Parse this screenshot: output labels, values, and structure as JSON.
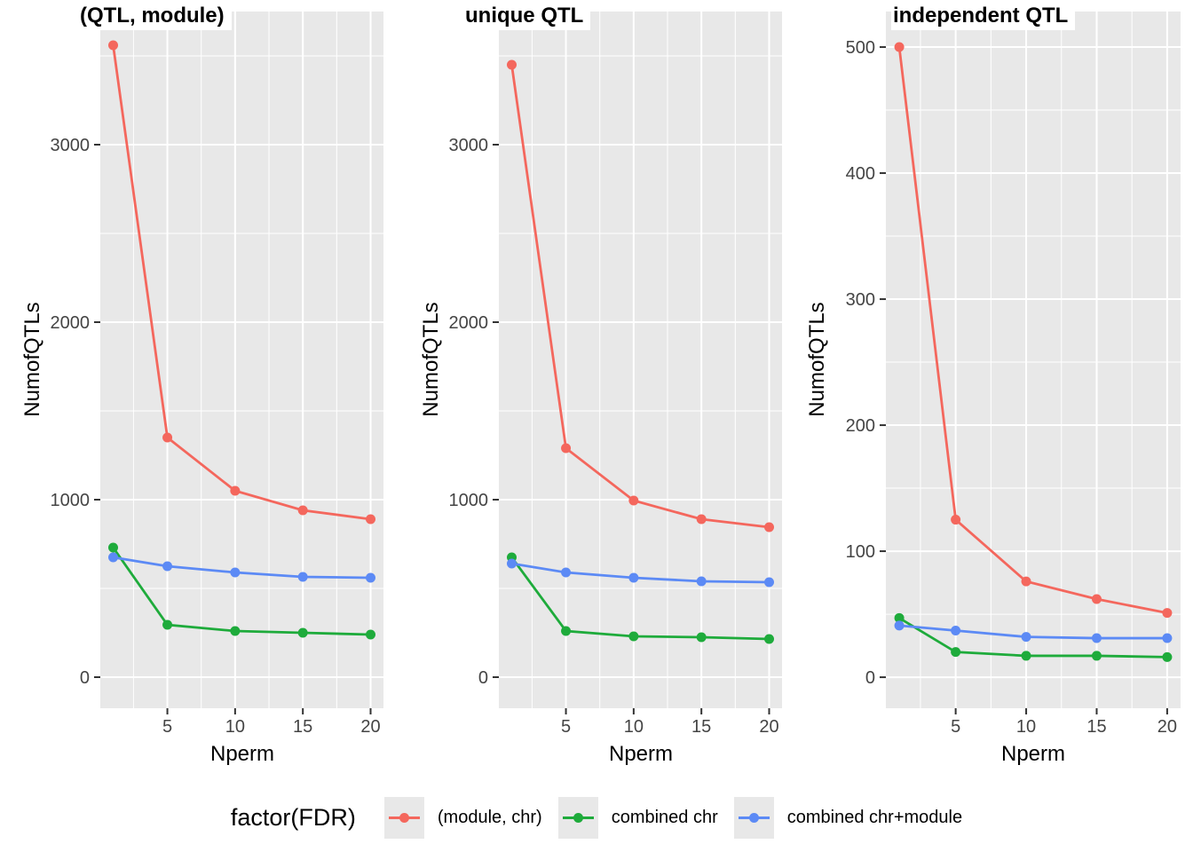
{
  "figure": {
    "background": "#FFFFFF",
    "panel_background": "#E8E8E8",
    "gridline_color": "#FFFFFF",
    "tick_mark_color": "#333333",
    "tick_label_color": "#444444"
  },
  "legend": {
    "title": "factor(FDR)",
    "position": "bottom",
    "key_background": "#E8E8E8",
    "items": [
      {
        "label": "(module, chr)",
        "color": "#F4675D"
      },
      {
        "label": "combined chr",
        "color": "#1EAB3B"
      },
      {
        "label": "combined chr+module",
        "color": "#5C8AF5"
      }
    ]
  },
  "chart_data": [
    {
      "type": "line",
      "title": "(QTL, module)",
      "xlabel": "Nperm",
      "ylabel": "NumofQTLs",
      "x": [
        1,
        5,
        10,
        15,
        20
      ],
      "x_ticks": [
        5,
        10,
        15,
        20
      ],
      "x_minor": [
        2.5,
        7.5,
        12.5,
        17.5
      ],
      "xlim": [
        0.05,
        20.95
      ],
      "y_ticks": [
        0,
        1000,
        2000,
        3000
      ],
      "y_minor": [
        500,
        1500,
        2500,
        3500
      ],
      "ylim": [
        -175,
        3750
      ],
      "grid": true,
      "series": [
        {
          "name": "(module, chr)",
          "color": "#F4675D",
          "values": [
            3560,
            1350,
            1050,
            940,
            890
          ]
        },
        {
          "name": "combined chr",
          "color": "#1EAB3B",
          "values": [
            730,
            295,
            260,
            250,
            240
          ]
        },
        {
          "name": "combined chr+module",
          "color": "#5C8AF5",
          "values": [
            675,
            625,
            590,
            565,
            560
          ]
        }
      ]
    },
    {
      "type": "line",
      "title": "unique QTL",
      "xlabel": "Nperm",
      "ylabel": "NumofQTLs",
      "x": [
        1,
        5,
        10,
        15,
        20
      ],
      "x_ticks": [
        5,
        10,
        15,
        20
      ],
      "x_minor": [
        2.5,
        7.5,
        12.5,
        17.5
      ],
      "xlim": [
        0.05,
        20.95
      ],
      "y_ticks": [
        0,
        1000,
        2000,
        3000
      ],
      "y_minor": [
        500,
        1500,
        2500,
        3500
      ],
      "ylim": [
        -175,
        3750
      ],
      "grid": true,
      "series": [
        {
          "name": "(module, chr)",
          "color": "#F4675D",
          "values": [
            3450,
            1290,
            995,
            890,
            845
          ]
        },
        {
          "name": "combined chr",
          "color": "#1EAB3B",
          "values": [
            675,
            260,
            230,
            225,
            215
          ]
        },
        {
          "name": "combined chr+module",
          "color": "#5C8AF5",
          "values": [
            640,
            590,
            560,
            540,
            535
          ]
        }
      ]
    },
    {
      "type": "line",
      "title": "independent QTL",
      "xlabel": "Nperm",
      "ylabel": "NumofQTLs",
      "x": [
        1,
        5,
        10,
        15,
        20
      ],
      "x_ticks": [
        5,
        10,
        15,
        20
      ],
      "x_minor": [
        2.5,
        7.5,
        12.5,
        17.5
      ],
      "xlim": [
        0.05,
        20.95
      ],
      "y_ticks": [
        0,
        100,
        200,
        300,
        400,
        500
      ],
      "y_minor": [
        50,
        150,
        250,
        350,
        450
      ],
      "ylim": [
        -24.6,
        528.2
      ],
      "grid": true,
      "series": [
        {
          "name": "(module, chr)",
          "color": "#F4675D",
          "values": [
            500,
            125,
            76,
            62,
            51
          ]
        },
        {
          "name": "combined chr",
          "color": "#1EAB3B",
          "values": [
            47,
            20,
            17,
            17,
            16
          ]
        },
        {
          "name": "combined chr+module",
          "color": "#5C8AF5",
          "values": [
            41,
            37,
            32,
            31,
            31
          ]
        }
      ]
    }
  ]
}
